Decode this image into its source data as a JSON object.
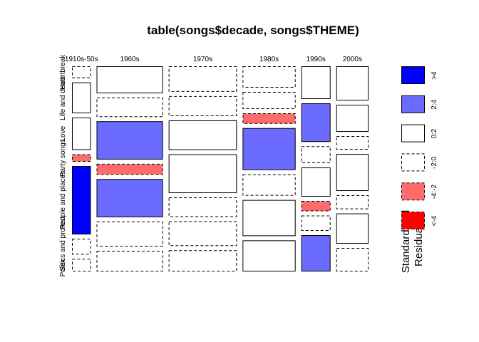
{
  "chart_data": {
    "type": "mosaic",
    "title": "table(songs$decade, songs$THEME)",
    "x_variable_levels": [
      "1910s-50s",
      "1960s",
      "1970s",
      "1980s",
      "1990s",
      "2000s"
    ],
    "y_variable_levels": [
      "Heartbreak",
      "Life and death",
      "Love",
      "Party songs",
      "People and places",
      "Politics and protest",
      "Sex"
    ],
    "y_tick_labels_as_printed": [
      "Heartbreak",
      "Life and death",
      "Love",
      "Party songs",
      "People and places",
      "Politics and protest",
      "Sex"
    ],
    "column_widths": [
      0.062,
      0.218,
      0.224,
      0.174,
      0.096,
      0.106
    ],
    "cells": {
      "1910s-50s": [
        {
          "theme": "Heartbreak",
          "height": 0.06,
          "residual_class": "-2:0"
        },
        {
          "theme": "Life and death",
          "height": 0.156,
          "residual_class": "0:2"
        },
        {
          "theme": "Love",
          "height": 0.164,
          "residual_class": "0:2"
        },
        {
          "theme": "Party songs",
          "height": 0.038,
          "residual_class": "-4:-2"
        },
        {
          "theme": "People and places",
          "height": 0.346,
          "residual_class": ">4"
        },
        {
          "theme": "Politics and protest",
          "height": 0.08,
          "residual_class": "-2:0"
        },
        {
          "theme": "Sex",
          "height": 0.064,
          "residual_class": "-2:0"
        }
      ],
      "1960s": [
        {
          "theme": "Heartbreak",
          "height": 0.138,
          "residual_class": "0:2"
        },
        {
          "theme": "Life and death",
          "height": 0.1,
          "residual_class": "-2:0"
        },
        {
          "theme": "Love",
          "height": 0.196,
          "residual_class": "2:4"
        },
        {
          "theme": "Party songs",
          "height": 0.056,
          "residual_class": "-4:-2"
        },
        {
          "theme": "People and places",
          "height": 0.196,
          "residual_class": "2:4"
        },
        {
          "theme": "Politics and protest",
          "height": 0.128,
          "residual_class": "-2:0"
        },
        {
          "theme": "Sex",
          "height": 0.106,
          "residual_class": "-2:0"
        }
      ],
      "1970s": [
        {
          "theme": "Heartbreak",
          "height": 0.128,
          "residual_class": "-2:0"
        },
        {
          "theme": "Life and death",
          "height": 0.1,
          "residual_class": "-2:0"
        },
        {
          "theme": "Love",
          "height": 0.148,
          "residual_class": "0:2"
        },
        {
          "theme": "Party songs",
          "height": 0.194,
          "residual_class": "0:2"
        },
        {
          "theme": "People and places",
          "height": 0.098,
          "residual_class": "-2:0"
        },
        {
          "theme": "Politics and protest",
          "height": 0.124,
          "residual_class": "-2:0"
        },
        {
          "theme": "Sex",
          "height": 0.106,
          "residual_class": "-2:0"
        }
      ],
      "1980s": [
        {
          "theme": "Heartbreak",
          "height": 0.11,
          "residual_class": "-2:0"
        },
        {
          "theme": "Life and death",
          "height": 0.088,
          "residual_class": "-2:0"
        },
        {
          "theme": "Love",
          "height": 0.054,
          "residual_class": "-4:-2"
        },
        {
          "theme": "Party songs",
          "height": 0.216,
          "residual_class": "2:4"
        },
        {
          "theme": "People and places",
          "height": 0.11,
          "residual_class": "-2:0"
        },
        {
          "theme": "Politics and protest",
          "height": 0.186,
          "residual_class": "0:2"
        },
        {
          "theme": "Sex",
          "height": 0.16,
          "residual_class": "0:2"
        }
      ],
      "1990s": [
        {
          "theme": "Heartbreak",
          "height": 0.166,
          "residual_class": "0:2"
        },
        {
          "theme": "Life and death",
          "height": 0.196,
          "residual_class": "2:4"
        },
        {
          "theme": "Love",
          "height": 0.086,
          "residual_class": "-2:0"
        },
        {
          "theme": "Party songs",
          "height": 0.148,
          "residual_class": "0:2"
        },
        {
          "theme": "People and places",
          "height": 0.052,
          "residual_class": "-4:-2"
        },
        {
          "theme": "Politics and protest",
          "height": 0.078,
          "residual_class": "-2:0"
        },
        {
          "theme": "Sex",
          "height": 0.184,
          "residual_class": "2:4"
        }
      ],
      "2000s": [
        {
          "theme": "Heartbreak",
          "height": 0.172,
          "residual_class": "0:2"
        },
        {
          "theme": "Life and death",
          "height": 0.136,
          "residual_class": "0:2"
        },
        {
          "theme": "Love",
          "height": 0.068,
          "residual_class": "-2:0"
        },
        {
          "theme": "Party songs",
          "height": 0.186,
          "residual_class": "0:2"
        },
        {
          "theme": "People and places",
          "height": 0.07,
          "residual_class": "-2:0"
        },
        {
          "theme": "Politics and protest",
          "height": 0.152,
          "residual_class": "0:2"
        },
        {
          "theme": "Sex",
          "height": 0.118,
          "residual_class": "-2:0"
        }
      ]
    },
    "legend": {
      "title_line1": "Standardized",
      "title_line2": "Residuals:",
      "placement": "right",
      "classes": [
        {
          "label": ">4",
          "fill": "#0000ff",
          "dashed": false
        },
        {
          "label": "2:4",
          "fill": "#6b6bff",
          "dashed": false
        },
        {
          "label": "0:2",
          "fill": "#ffffff",
          "dashed": false
        },
        {
          "label": "-2:0",
          "fill": "#ffffff",
          "dashed": true
        },
        {
          "label": "-4:-2",
          "fill": "#ff6b6b",
          "dashed": true
        },
        {
          "label": "<-4",
          "fill": "#ff0000",
          "dashed": true
        }
      ]
    }
  }
}
